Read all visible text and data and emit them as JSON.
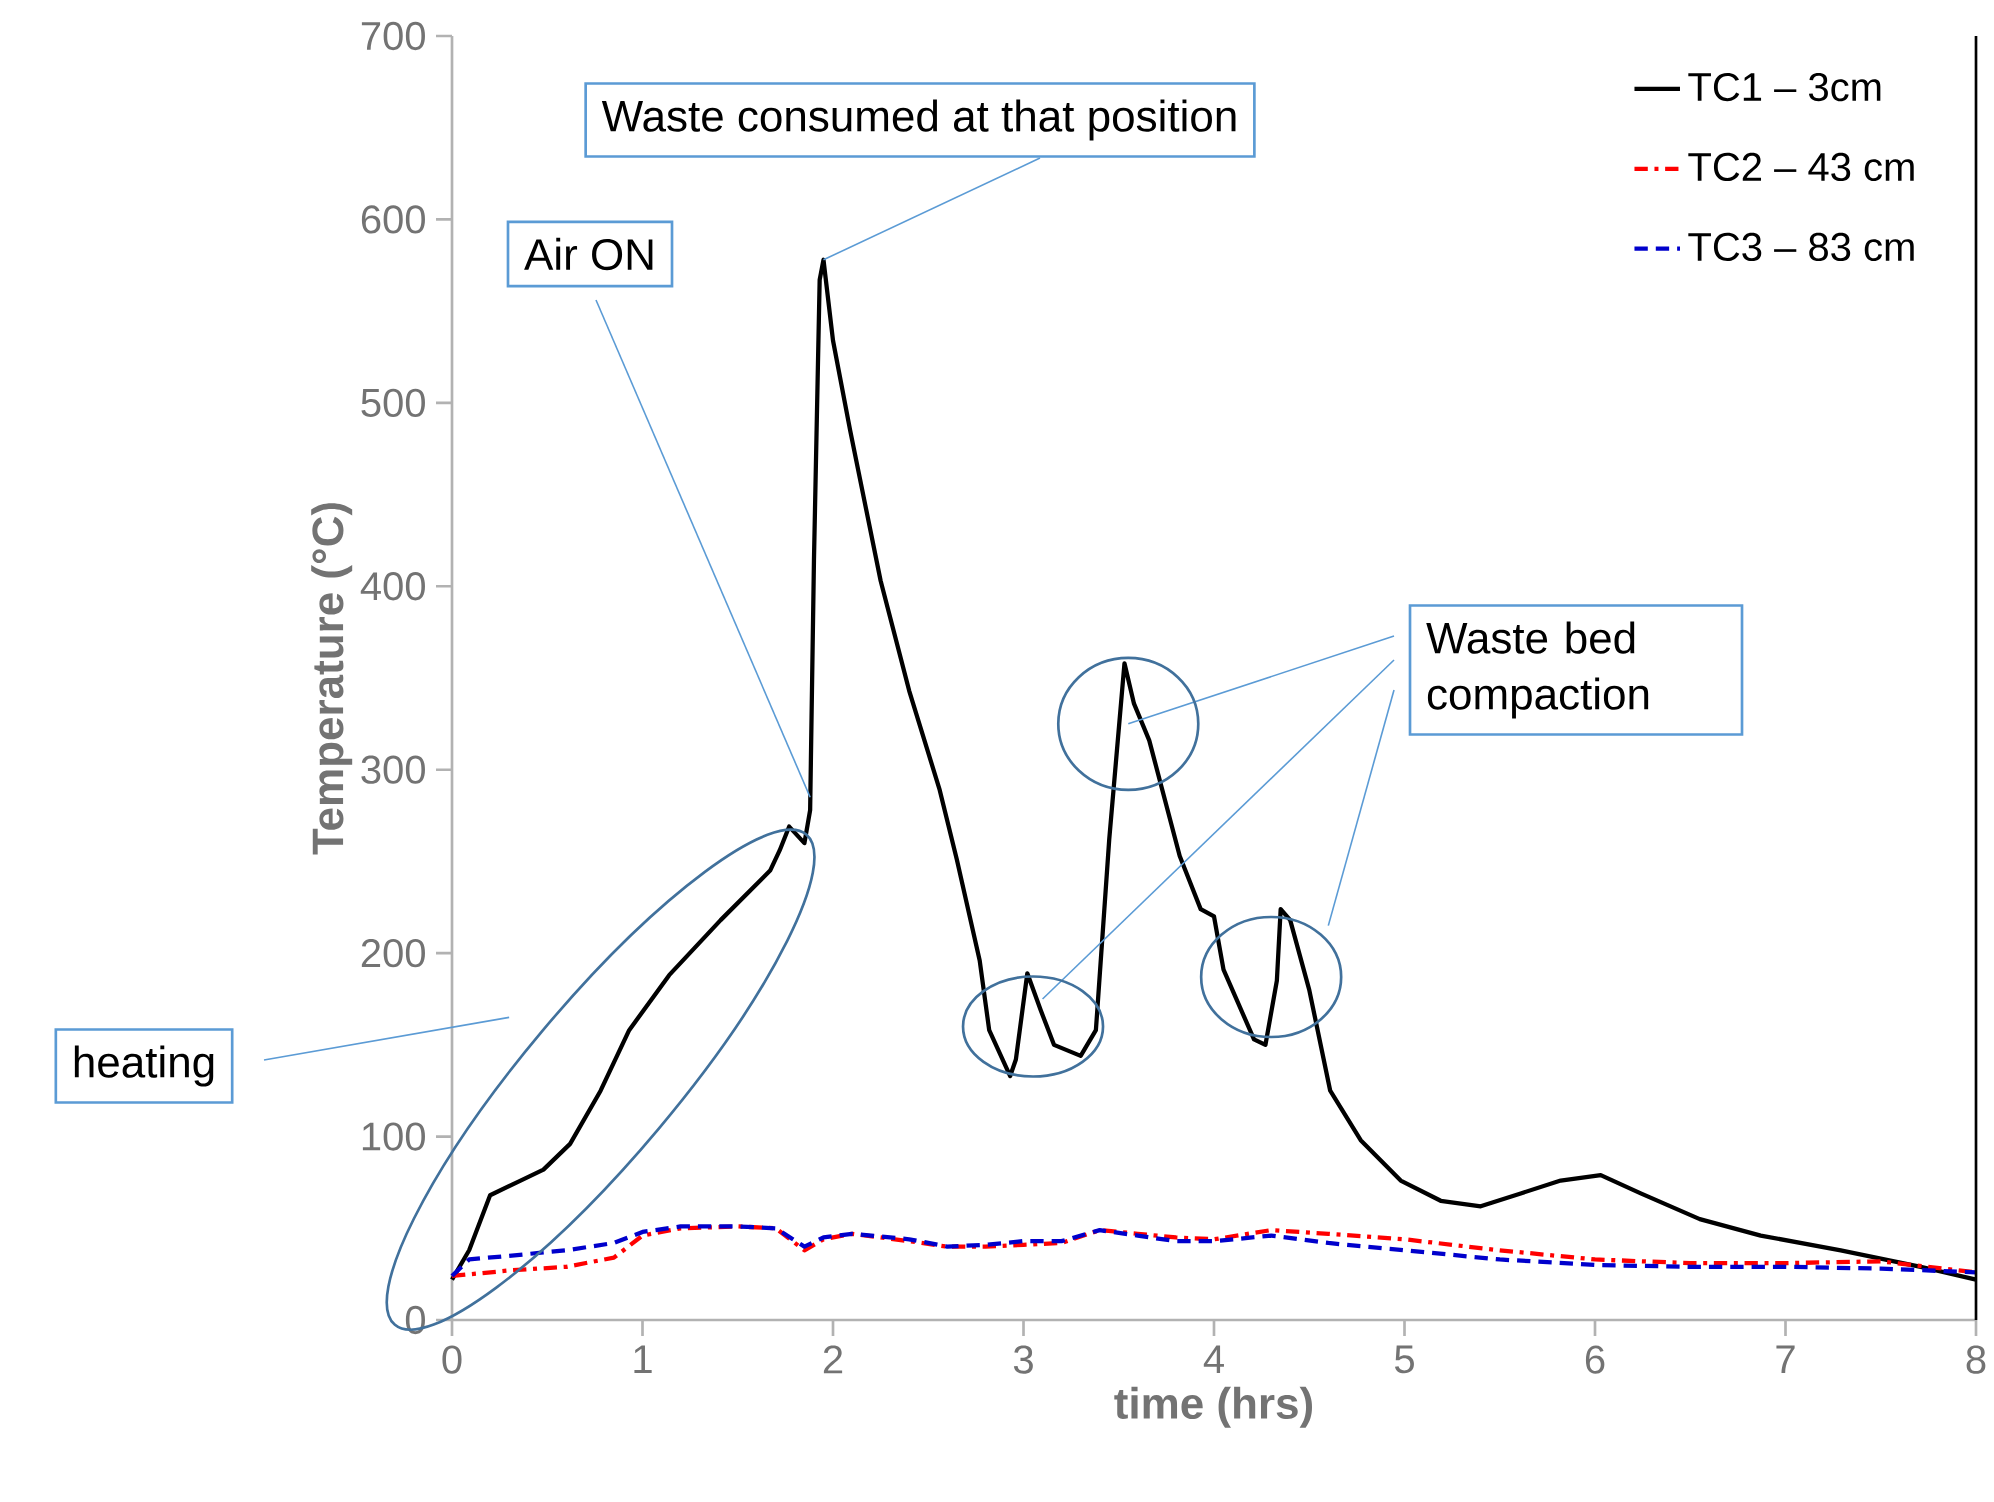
{
  "chart_data": {
    "type": "line",
    "xlabel": "time (hrs)",
    "ylabel": "Temperature (°C)",
    "xlim": [
      0,
      8
    ],
    "ylim": [
      0,
      700
    ],
    "xticks": [
      0,
      1,
      2,
      3,
      4,
      5,
      6,
      7,
      8
    ],
    "yticks": [
      0,
      100,
      200,
      300,
      400,
      500,
      600,
      700
    ],
    "grid": false,
    "legend": "top right",
    "series": [
      {
        "name": "TC1 – 3cm",
        "color": "#000000",
        "line_style": "solid",
        "x": [
          0,
          0.09,
          0.2,
          0.36,
          0.48,
          0.62,
          0.78,
          0.93,
          1.14,
          1.41,
          1.67,
          1.72,
          1.77,
          1.85,
          1.88,
          1.9,
          1.93,
          1.95,
          2.0,
          2.09,
          2.25,
          2.4,
          2.56,
          2.65,
          2.77,
          2.82,
          2.93,
          2.96,
          3.02,
          3.09,
          3.16,
          3.3,
          3.38,
          3.45,
          3.53,
          3.58,
          3.66,
          3.82,
          3.93,
          4.0,
          4.05,
          4.21,
          4.27,
          4.33,
          4.35,
          4.4,
          4.5,
          4.61,
          4.77,
          4.98,
          5.19,
          5.4,
          5.61,
          5.82,
          6.03,
          6.24,
          6.55,
          6.87,
          7.29,
          7.71,
          8.0
        ],
        "values": [
          22,
          38,
          68,
          76,
          82,
          96,
          125,
          158,
          188,
          218,
          245,
          256,
          269,
          260,
          278,
          414,
          567,
          578,
          534,
          485,
          403,
          343,
          289,
          251,
          196,
          158,
          133,
          142,
          189,
          169,
          150,
          144,
          158,
          262,
          358,
          336,
          316,
          253,
          224,
          220,
          191,
          153,
          150,
          185,
          224,
          218,
          180,
          125,
          98,
          76,
          65,
          62,
          69,
          76,
          79,
          69,
          55,
          46,
          38,
          29,
          22
        ]
      },
      {
        "name": "TC2 – 43 cm",
        "color": "#ff0000",
        "line_style": "dashdot",
        "x": [
          0,
          0.3,
          0.6,
          0.85,
          1.0,
          1.2,
          1.5,
          1.7,
          1.85,
          1.95,
          2.1,
          2.4,
          2.6,
          2.8,
          3.0,
          3.2,
          3.4,
          3.6,
          3.8,
          4.0,
          4.3,
          4.6,
          5.0,
          5.5,
          6.0,
          6.5,
          7.0,
          7.5,
          8.0
        ],
        "values": [
          24,
          27,
          29,
          34,
          46,
          50,
          51,
          50,
          38,
          44,
          47,
          43,
          40,
          40,
          41,
          42,
          49,
          47,
          45,
          44,
          49,
          47,
          44,
          38,
          33,
          31,
          31,
          32,
          26
        ]
      },
      {
        "name": "TC3 – 83 cm",
        "color": "#0000cc",
        "line_style": "dashed",
        "x": [
          0,
          0.09,
          0.3,
          0.6,
          0.85,
          1.0,
          1.2,
          1.5,
          1.7,
          1.85,
          1.95,
          2.1,
          2.4,
          2.6,
          2.8,
          3.0,
          3.2,
          3.4,
          3.6,
          3.8,
          4.0,
          4.3,
          4.6,
          5.0,
          5.5,
          6.0,
          6.5,
          7.0,
          7.5,
          8.0
        ],
        "values": [
          24,
          33,
          35,
          38,
          42,
          48,
          51,
          51,
          50,
          40,
          45,
          47,
          44,
          40,
          41,
          43,
          43,
          49,
          46,
          43,
          43,
          46,
          42,
          38,
          33,
          30,
          29,
          29,
          28,
          26
        ]
      }
    ],
    "annotations": [
      {
        "text": "Waste consumed at that position",
        "x": 1.95,
        "y": 578
      },
      {
        "text": "Air ON",
        "x": 1.88,
        "y": 285
      },
      {
        "text": "Waste bed compaction",
        "x": 3.55,
        "y": 325
      },
      "heating"
    ]
  }
}
